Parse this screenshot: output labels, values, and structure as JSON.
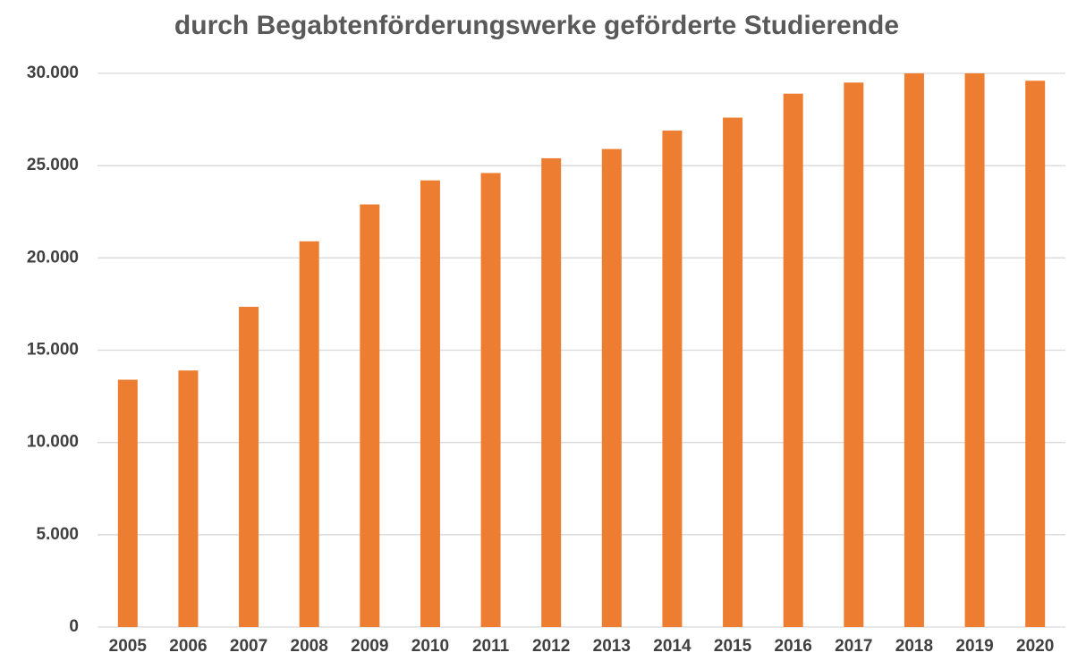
{
  "chart_data": {
    "type": "bar",
    "title": "durch  Begabtenförderungswerke geförderte Studierende",
    "categories": [
      "2005",
      "2006",
      "2007",
      "2008",
      "2009",
      "2010",
      "2011",
      "2012",
      "2013",
      "2014",
      "2015",
      "2016",
      "2017",
      "2018",
      "2019",
      "2020"
    ],
    "values": [
      13400,
      13900,
      17350,
      20900,
      22900,
      24200,
      24600,
      25400,
      25900,
      26900,
      27600,
      28900,
      29500,
      30000,
      30000,
      29600
    ],
    "color": "#ed7d31",
    "ylim": [
      0,
      30000
    ],
    "yticks": [
      0,
      {
        "value": 5000,
        "label": "5.000"
      },
      {
        "value": 10000,
        "label": "10.000"
      },
      {
        "value": 15000,
        "label": "15.000"
      },
      {
        "value": 20000,
        "label": "20.000"
      },
      {
        "value": 25000,
        "label": "25.000"
      },
      {
        "value": 30000,
        "label": "30.000"
      }
    ],
    "grid": true
  }
}
